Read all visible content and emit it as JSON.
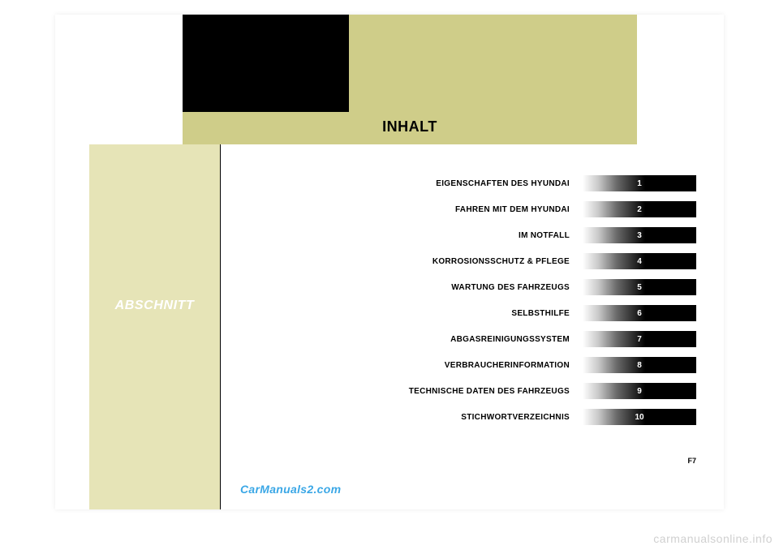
{
  "title": "INHALT",
  "section_label": "ABSCHNITT",
  "page_num": "F7",
  "watermark1": "CarManuals2.com",
  "watermark2": "carmanualsonline.info",
  "colors": {
    "top_khaki": "#cfcd89",
    "side_khaki": "#e6e4b7",
    "top_black": "#000000",
    "section_text": "#ffffff",
    "link_blue": "#3aa7e6",
    "footer_gray": "#d0d0d0"
  },
  "toc": [
    {
      "label": "EIGENSCHAFTEN DES HYUNDAI",
      "num": "1"
    },
    {
      "label": "FAHREN MIT DEM HYUNDAI",
      "num": "2"
    },
    {
      "label": "IM NOTFALL",
      "num": "3"
    },
    {
      "label": "KORROSIONSSCHUTZ & PFLEGE",
      "num": "4"
    },
    {
      "label": "WARTUNG DES FAHRZEUGS",
      "num": "5"
    },
    {
      "label": "SELBSTHILFE",
      "num": "6"
    },
    {
      "label": "ABGASREINIGUNGSSYSTEM",
      "num": "7"
    },
    {
      "label": "VERBRAUCHERINFORMATION",
      "num": "8"
    },
    {
      "label": "TECHNISCHE DATEN DES FAHRZEUGS",
      "num": "9"
    },
    {
      "label": "STICHWORTVERZEICHNIS",
      "num": "10"
    }
  ]
}
